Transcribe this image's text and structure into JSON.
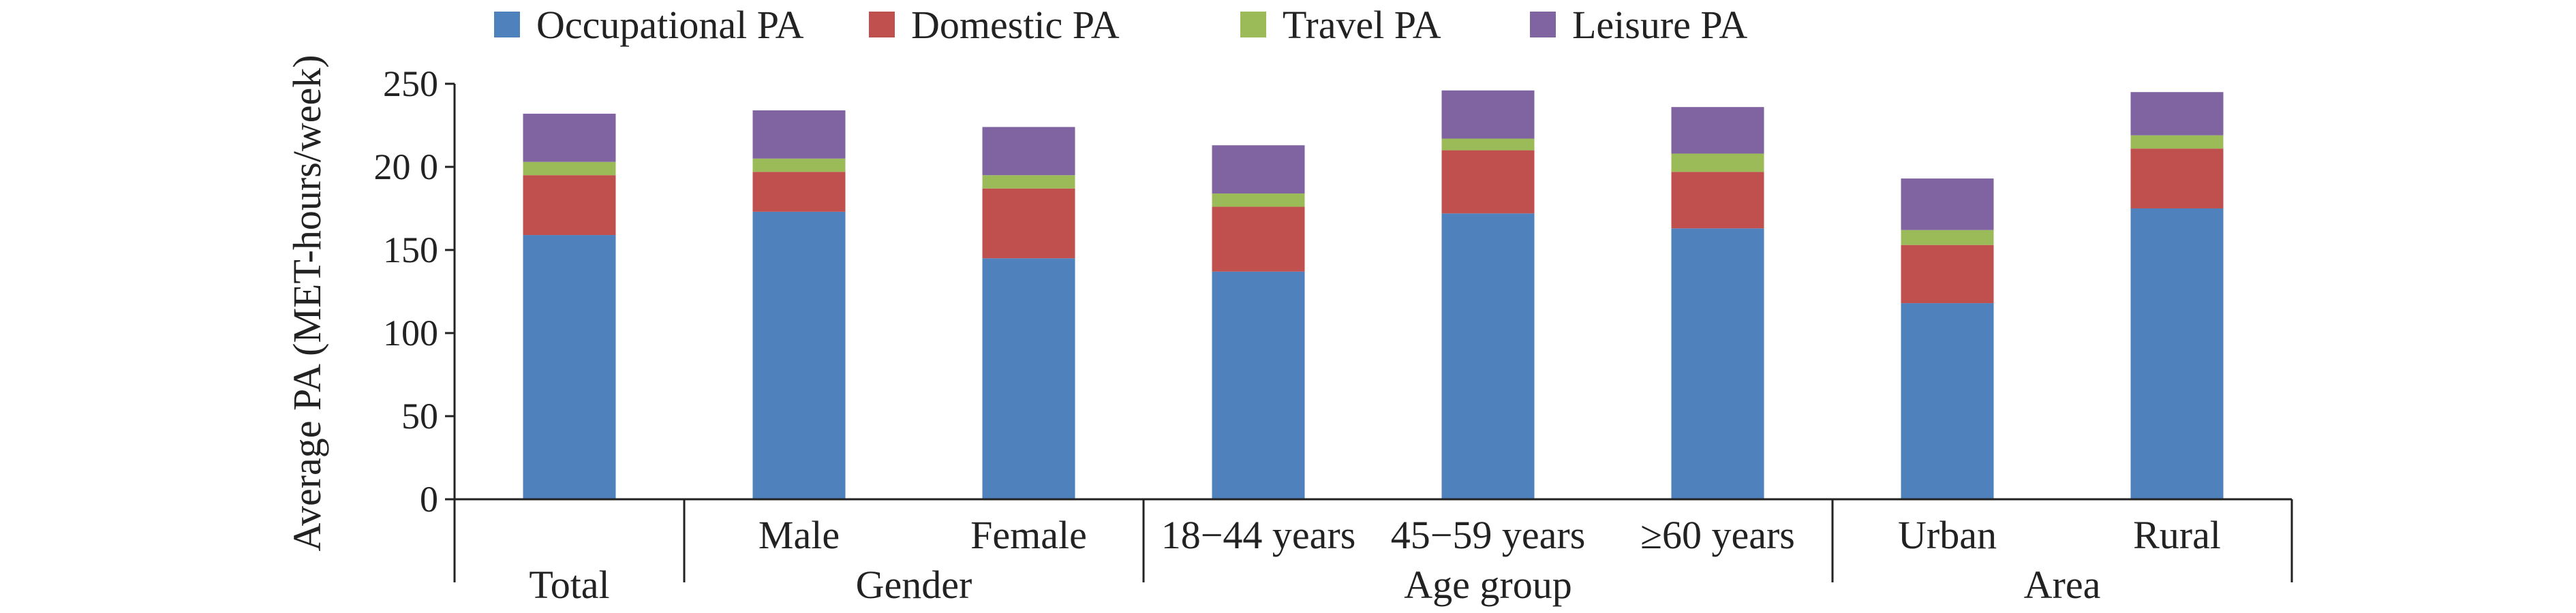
{
  "chart_data": {
    "type": "bar",
    "stacked": true,
    "title": "",
    "ylabel": "Average PA (MET-hours/week)",
    "ylim": [
      0,
      250
    ],
    "yticks": [
      0,
      50,
      100,
      150,
      200,
      250
    ],
    "ytick_labels": [
      "0",
      "50",
      "100",
      "150",
      "20 0",
      "250"
    ],
    "categories": [
      "",
      "Male",
      "Female",
      "18−44 years",
      "45−59 years",
      "≥60 years",
      "Urban",
      "Rural"
    ],
    "groups": [
      {
        "label": "Total",
        "start": 0,
        "end": 0
      },
      {
        "label": "Gender",
        "start": 1,
        "end": 2
      },
      {
        "label": "Age group",
        "start": 3,
        "end": 5
      },
      {
        "label": "Area",
        "start": 6,
        "end": 7
      }
    ],
    "legend_position": "top",
    "series": [
      {
        "name": "Occupational PA",
        "color": "#4F81BD",
        "values": [
          159,
          173,
          145,
          137,
          172,
          163,
          118,
          175
        ]
      },
      {
        "name": "Domestic PA",
        "color": "#C0504D",
        "values": [
          36,
          24,
          42,
          39,
          38,
          34,
          35,
          36
        ]
      },
      {
        "name": "Travel PA",
        "color": "#9BBB59",
        "values": [
          8,
          8,
          8,
          8,
          7,
          11,
          9,
          8
        ]
      },
      {
        "name": "Leisure PA",
        "color": "#8064A2",
        "values": [
          29,
          29,
          29,
          29,
          29,
          28,
          31,
          26
        ]
      }
    ]
  }
}
